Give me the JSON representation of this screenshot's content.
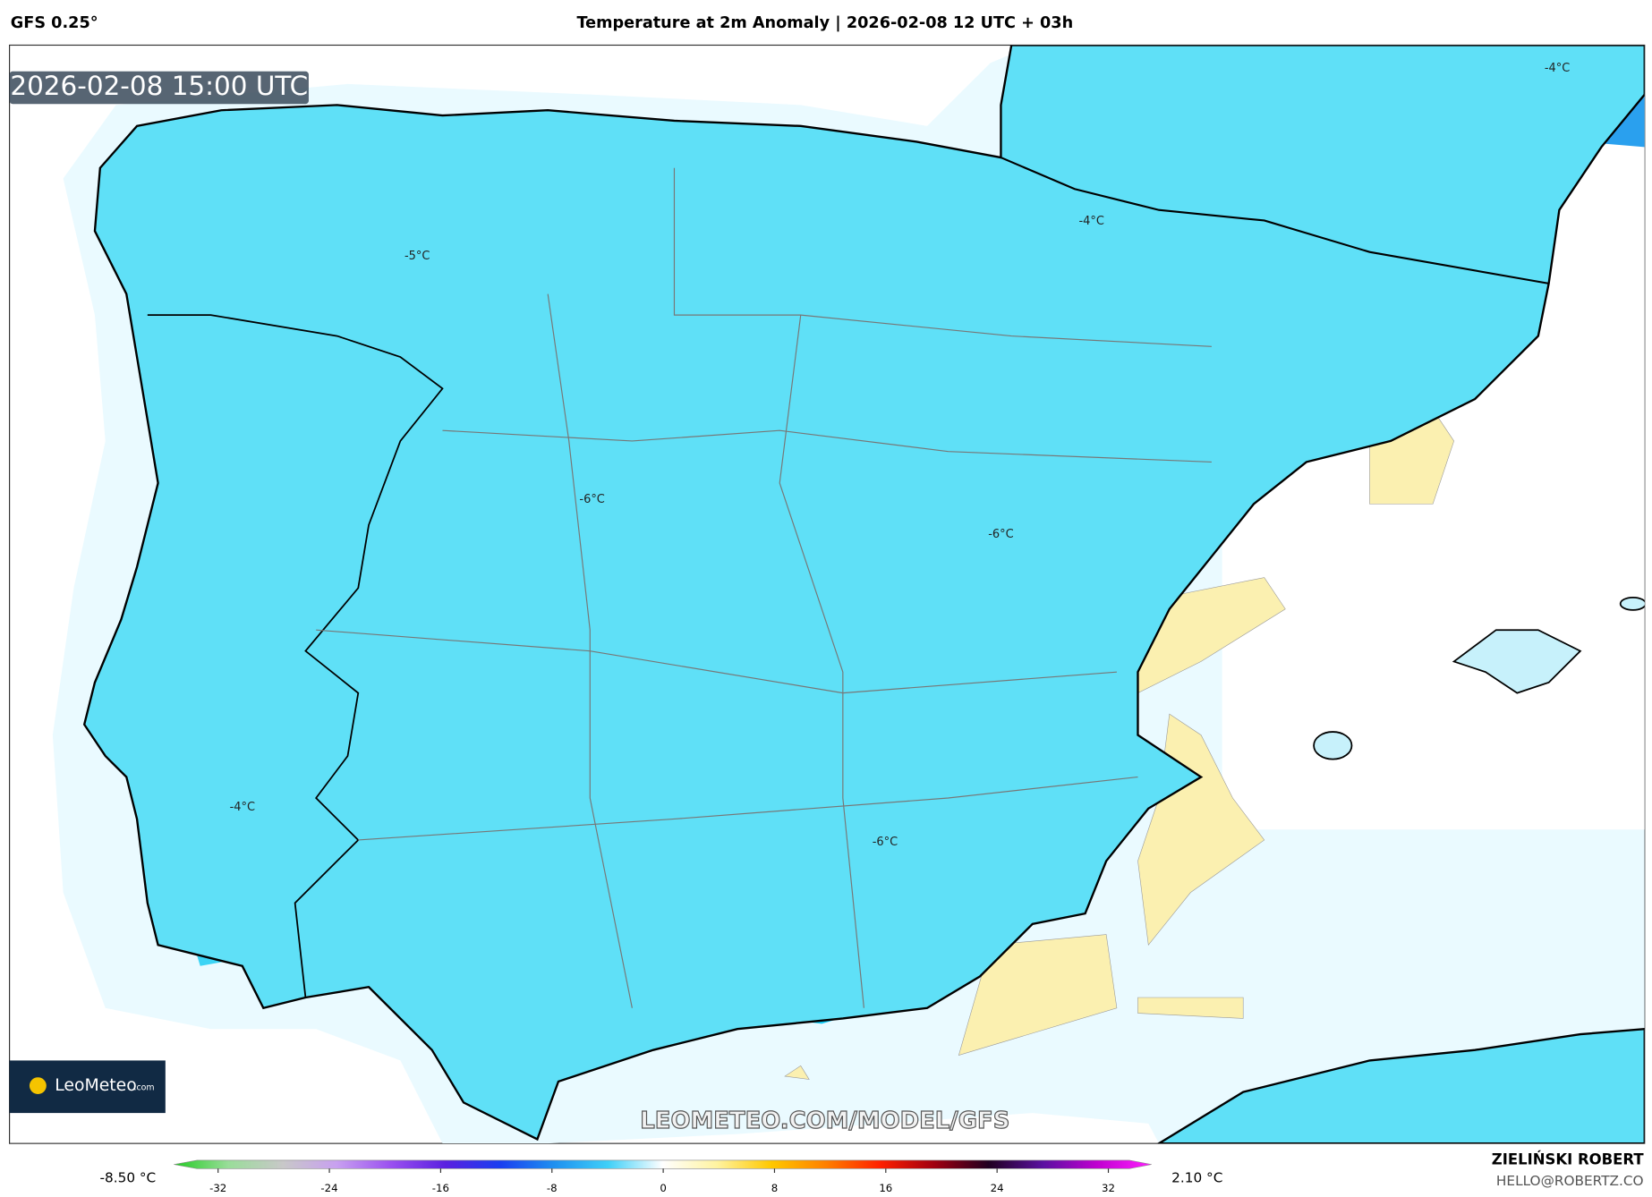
{
  "header": {
    "model": "GFS 0.25°",
    "title": "Temperature at 2m Anomaly | 2026-02-08 12 UTC + 03h"
  },
  "map": {
    "timestamp": "2026-02-08 15:00 UTC",
    "labels": [
      "-5°C",
      "-4°C",
      "-4°C",
      "-6°C",
      "-6°C",
      "-4°C",
      "-6°C"
    ]
  },
  "logo": {
    "name": "LeoMeteo",
    "suffix": ".com"
  },
  "watermark": "LEOMETEO.COM/MODEL/GFS",
  "colorbar": {
    "min_label": "-8.50 °C",
    "max_label": "2.10 °C",
    "lim": [
      -32,
      32
    ],
    "ticks": [
      -32,
      -24,
      -16,
      -8,
      0,
      8,
      16,
      24,
      32
    ],
    "colors": [
      "#22cc22",
      "#99dd99",
      "#c8c8c8",
      "#c8a0f0",
      "#9a50f0",
      "#5a20e0",
      "#1a3ef0",
      "#1e90f0",
      "#40d0f8",
      "#ffffff",
      "#fff3a0",
      "#ffc800",
      "#ff8000",
      "#ff2000",
      "#a00010",
      "#200020",
      "#5a10a0",
      "#c000d0",
      "#ff20ff"
    ]
  },
  "credit": {
    "name": "ZIELIŃSKI ROBERT",
    "email": "HELLO@ROBERTZ.CO"
  }
}
